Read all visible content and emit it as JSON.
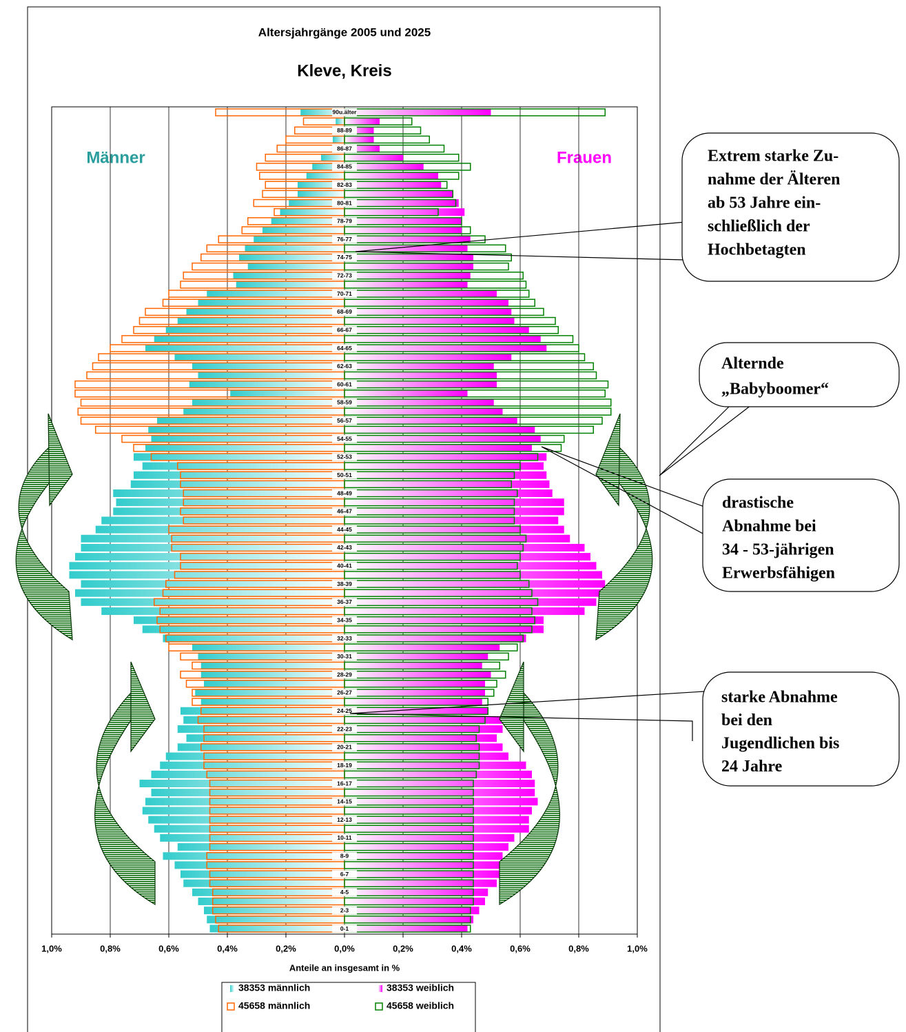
{
  "chart_data": {
    "type": "pyramid",
    "title": "Altersjahrgänge 2005 und 2025",
    "subtitle": "Kleve, Kreis",
    "x_label": "Anteile an insgesamt in %",
    "left_label": "Männer",
    "right_label": "Frauen",
    "xlim": [
      -1,
      1
    ],
    "xticks": [
      {
        "value": -1,
        "label": "1,0%"
      },
      {
        "value": -0.8,
        "label": "0,8%"
      },
      {
        "value": -0.6,
        "label": "0,6%"
      },
      {
        "value": -0.4,
        "label": "0,4%"
      },
      {
        "value": -0.2,
        "label": "0,2%"
      },
      {
        "value": 0,
        "label": "0,0%"
      },
      {
        "value": 0.2,
        "label": "0,2%"
      },
      {
        "value": 0.4,
        "label": "0,4%"
      },
      {
        "value": 0.6,
        "label": "0,6%"
      },
      {
        "value": 0.8,
        "label": "0,8%"
      },
      {
        "value": 1,
        "label": "1,0%"
      }
    ],
    "grid": true,
    "legend": "bottom",
    "categories": [
      "0-1",
      null,
      "2-3",
      null,
      "4-5",
      null,
      "6-7",
      null,
      "8-9",
      null,
      "10-11",
      null,
      "12-13",
      null,
      "14-15",
      null,
      "16-17",
      null,
      "18-19",
      null,
      "20-21",
      null,
      "22-23",
      null,
      "24-25",
      null,
      "26-27",
      null,
      "28-29",
      null,
      "30-31",
      null,
      "32-33",
      null,
      "34-35",
      null,
      "36-37",
      null,
      "38-39",
      null,
      "40-41",
      null,
      "42-43",
      null,
      "44-45",
      null,
      "46-47",
      null,
      "48-49",
      null,
      "50-51",
      null,
      "52-53",
      null,
      "54-55",
      null,
      "56-57",
      null,
      "58-59",
      null,
      "60-61",
      null,
      "62-63",
      null,
      "64-65",
      null,
      "66-67",
      null,
      "68-69",
      null,
      "70-71",
      null,
      "72-73",
      null,
      "74-75",
      null,
      "76-77",
      null,
      "78-79",
      null,
      "80-81",
      null,
      "82-83",
      null,
      "84-85",
      null,
      "86-87",
      null,
      "88-89",
      null,
      "90u.älter"
    ],
    "series": [
      {
        "name": "38353 männlich",
        "color": "#33cccc",
        "side": "left",
        "style": "fill",
        "values": [
          0.46,
          0.47,
          0.48,
          0.5,
          0.52,
          0.55,
          0.56,
          0.58,
          0.62,
          0.57,
          0.63,
          0.65,
          0.67,
          0.69,
          0.68,
          0.66,
          0.7,
          0.66,
          0.63,
          0.61,
          0.57,
          0.54,
          0.57,
          0.55,
          0.56,
          0.49,
          0.51,
          0.48,
          0.49,
          0.49,
          0.5,
          0.52,
          0.62,
          0.69,
          0.72,
          0.83,
          0.9,
          0.92,
          0.9,
          0.94,
          0.94,
          0.92,
          0.9,
          0.9,
          0.85,
          0.83,
          0.79,
          0.78,
          0.79,
          0.73,
          0.72,
          0.69,
          0.72,
          0.68,
          0.66,
          0.67,
          0.64,
          0.55,
          0.52,
          0.39,
          0.53,
          0.5,
          0.52,
          0.58,
          0.68,
          0.65,
          0.61,
          0.57,
          0.54,
          0.5,
          0.47,
          0.37,
          0.38,
          0.33,
          0.36,
          0.34,
          0.31,
          0.28,
          0.25,
          0.22,
          0.19,
          0.16,
          0.16,
          0.13,
          0.11,
          0.08,
          0.02,
          0.04,
          0.02,
          0.03,
          0.15
        ]
      },
      {
        "name": "38353 weiblich",
        "color": "#ff00ff",
        "side": "right",
        "style": "fill",
        "values": [
          0.42,
          0.44,
          0.46,
          0.48,
          0.49,
          0.52,
          0.53,
          0.53,
          0.54,
          0.56,
          0.58,
          0.63,
          0.63,
          0.64,
          0.66,
          0.65,
          0.65,
          0.64,
          0.62,
          0.56,
          0.54,
          0.52,
          0.54,
          0.54,
          0.49,
          0.47,
          0.48,
          0.48,
          0.5,
          0.47,
          0.49,
          0.53,
          0.62,
          0.68,
          0.68,
          0.82,
          0.86,
          0.9,
          0.89,
          0.88,
          0.86,
          0.84,
          0.82,
          0.77,
          0.75,
          0.73,
          0.75,
          0.75,
          0.71,
          0.7,
          0.69,
          0.68,
          0.69,
          0.64,
          0.67,
          0.65,
          0.59,
          0.54,
          0.51,
          0.42,
          0.52,
          0.52,
          0.51,
          0.57,
          0.69,
          0.67,
          0.63,
          0.58,
          0.57,
          0.56,
          0.52,
          0.42,
          0.43,
          0.44,
          0.44,
          0.42,
          0.43,
          0.4,
          0.4,
          0.41,
          0.39,
          0.37,
          0.33,
          0.32,
          0.27,
          0.2,
          0.12,
          0.1,
          0.1,
          0.12,
          0.5
        ]
      },
      {
        "name": "45658 männlich",
        "color": "#ff6600",
        "side": "left",
        "style": "outline",
        "values": [
          0.43,
          0.44,
          0.45,
          0.45,
          0.45,
          0.46,
          0.46,
          0.47,
          0.47,
          0.46,
          0.46,
          0.46,
          0.46,
          0.46,
          0.46,
          0.46,
          0.46,
          0.47,
          0.48,
          0.48,
          0.49,
          0.48,
          0.48,
          0.5,
          0.49,
          0.52,
          0.52,
          0.54,
          0.56,
          0.52,
          0.56,
          0.6,
          0.61,
          0.63,
          0.64,
          0.63,
          0.65,
          0.62,
          0.61,
          0.58,
          0.56,
          0.56,
          0.59,
          0.59,
          0.6,
          0.55,
          0.56,
          0.55,
          0.55,
          0.56,
          0.56,
          0.57,
          0.66,
          0.72,
          0.76,
          0.85,
          0.9,
          0.91,
          0.9,
          0.92,
          0.92,
          0.88,
          0.86,
          0.84,
          0.8,
          0.76,
          0.72,
          0.7,
          0.68,
          0.62,
          0.6,
          0.56,
          0.55,
          0.52,
          0.49,
          0.47,
          0.43,
          0.35,
          0.33,
          0.24,
          0.31,
          0.28,
          0.27,
          0.29,
          0.3,
          0.27,
          0.23,
          0.2,
          0.17,
          0.14,
          0.44
        ]
      },
      {
        "name": "45658 weiblich",
        "color": "#008000",
        "side": "right",
        "style": "outline",
        "values": [
          0.43,
          0.43,
          0.43,
          0.44,
          0.44,
          0.44,
          0.44,
          0.44,
          0.44,
          0.44,
          0.44,
          0.44,
          0.44,
          0.44,
          0.44,
          0.44,
          0.44,
          0.45,
          0.46,
          0.46,
          0.46,
          0.45,
          0.46,
          0.48,
          0.49,
          0.49,
          0.51,
          0.52,
          0.55,
          0.53,
          0.56,
          0.59,
          0.61,
          0.64,
          0.65,
          0.64,
          0.66,
          0.64,
          0.63,
          0.6,
          0.59,
          0.6,
          0.61,
          0.62,
          0.6,
          0.58,
          0.58,
          0.58,
          0.59,
          0.57,
          0.58,
          0.6,
          0.66,
          0.74,
          0.75,
          0.85,
          0.88,
          0.91,
          0.91,
          0.89,
          0.9,
          0.86,
          0.85,
          0.82,
          0.8,
          0.78,
          0.73,
          0.72,
          0.68,
          0.65,
          0.63,
          0.62,
          0.61,
          0.56,
          0.57,
          0.55,
          0.48,
          0.43,
          0.4,
          0.32,
          0.38,
          0.37,
          0.35,
          0.39,
          0.43,
          0.39,
          0.34,
          0.29,
          0.26,
          0.23,
          0.89
        ]
      }
    ],
    "annotations": [
      {
        "lines": [
          "Extrem starke Zu-",
          "nahme der Älteren",
          "ab 53 Jahre ein-",
          "schließlich der",
          "Hochbetagten"
        ]
      },
      {
        "lines": [
          "Alternde",
          "„Babyboomer“"
        ]
      },
      {
        "lines": [
          "drastische",
          "Abnahme bei",
          "34 - 53-jährigen",
          "Erwerbsfähigen"
        ]
      },
      {
        "lines": [
          "starke Abnahme",
          "bei den",
          "Jugendlichen bis",
          "24 Jahre"
        ]
      }
    ]
  }
}
